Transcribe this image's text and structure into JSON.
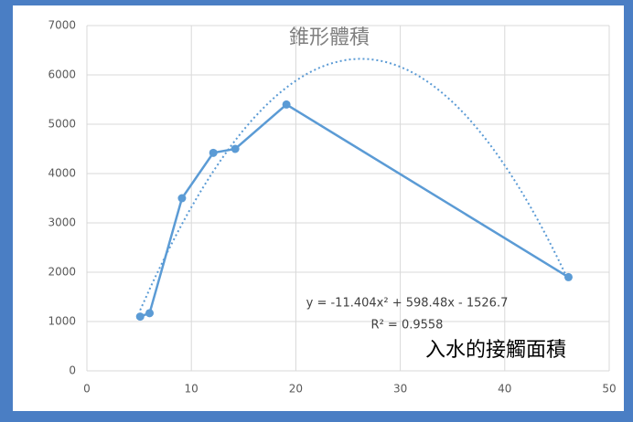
{
  "chart_data": {
    "type": "scatter-line",
    "title": "錐形體積",
    "x_label": "入水的接觸面積",
    "x": [
      5.1,
      6.0,
      9.1,
      12.1,
      14.2,
      19.1,
      46.1
    ],
    "series": [
      {
        "color": "#5b9bd5",
        "values": [
          1100,
          1170,
          3500,
          4420,
          4500,
          5400,
          1900
        ]
      }
    ],
    "trendline": {
      "type": "polynomial",
      "coefficients": [
        -11.404,
        598.48,
        -1526.7
      ],
      "equation": "y = -11.404x² + 598.48x - 1526.7",
      "r2": "R² = 0.9558"
    },
    "xlim": [
      0,
      50
    ],
    "xticks": [
      0,
      10,
      20,
      30,
      40,
      50
    ],
    "ylim": [
      0,
      7000
    ],
    "yticks": [
      0,
      1000,
      2000,
      3000,
      4000,
      5000,
      6000,
      7000
    ],
    "grid": true
  }
}
